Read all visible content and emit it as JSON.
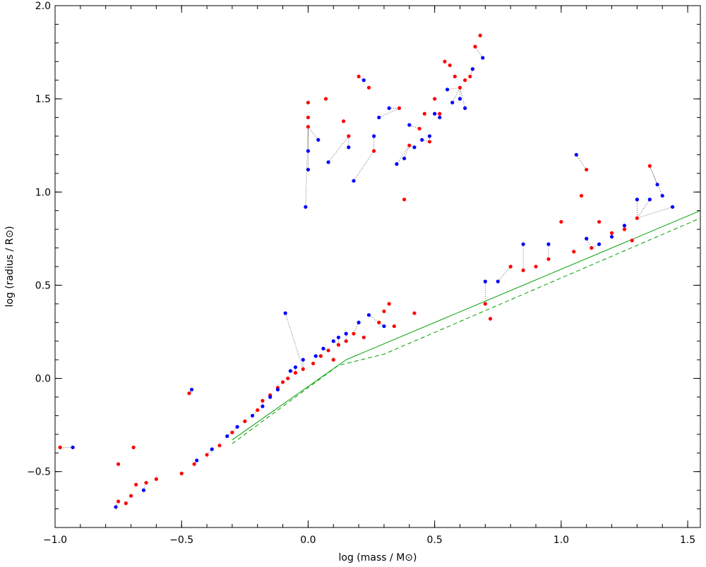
{
  "chart_data": {
    "type": "scatter",
    "title": "",
    "xlabel": "log (mass / M⊙)",
    "ylabel": "log (radius / R⊙)",
    "xlim": [
      -1.0,
      1.55
    ],
    "ylim": [
      -0.8,
      2.0
    ],
    "x_tick_labels": [
      "−1.0",
      "−0.5",
      "0.0",
      "0.5",
      "1.0",
      "1.5"
    ],
    "x_ticks": [
      -1.0,
      -0.5,
      0.0,
      0.5,
      1.0,
      1.5
    ],
    "y_tick_labels": [
      "−0.5",
      "0.0",
      "0.5",
      "1.0",
      "1.5",
      "2.0"
    ],
    "y_ticks": [
      -0.5,
      0.0,
      0.5,
      1.0,
      1.5,
      2.0
    ],
    "grid": false,
    "colors": {
      "series_a": "#ff0000",
      "series_b": "#0000ff",
      "line": "#00a000",
      "connector": "#404040"
    },
    "series": [
      {
        "color": "#ff0000",
        "points": [
          [
            -0.98,
            -0.37
          ],
          [
            -0.75,
            -0.46
          ],
          [
            -0.75,
            -0.66
          ],
          [
            -0.72,
            -0.67
          ],
          [
            -0.7,
            -0.63
          ],
          [
            -0.69,
            -0.37
          ],
          [
            -0.68,
            -0.57
          ],
          [
            -0.64,
            -0.56
          ],
          [
            -0.6,
            -0.54
          ],
          [
            -0.5,
            -0.51
          ],
          [
            -0.47,
            -0.08
          ],
          [
            -0.45,
            -0.46
          ],
          [
            -0.4,
            -0.41
          ],
          [
            -0.35,
            -0.36
          ],
          [
            -0.3,
            -0.29
          ],
          [
            -0.25,
            -0.23
          ],
          [
            -0.2,
            -0.17
          ],
          [
            -0.18,
            -0.12
          ],
          [
            -0.15,
            -0.09
          ],
          [
            -0.12,
            -0.05
          ],
          [
            -0.1,
            -0.02
          ],
          [
            -0.08,
            0.0
          ],
          [
            -0.05,
            0.03
          ],
          [
            -0.02,
            0.05
          ],
          [
            0.0,
            1.48
          ],
          [
            0.0,
            1.35
          ],
          [
            0.0,
            1.4
          ],
          [
            0.02,
            0.08
          ],
          [
            0.05,
            0.12
          ],
          [
            0.07,
            1.5
          ],
          [
            0.08,
            0.15
          ],
          [
            0.1,
            0.1
          ],
          [
            0.12,
            0.18
          ],
          [
            0.14,
            1.38
          ],
          [
            0.15,
            0.2
          ],
          [
            0.16,
            1.3
          ],
          [
            0.18,
            0.24
          ],
          [
            0.2,
            1.62
          ],
          [
            0.22,
            0.22
          ],
          [
            0.24,
            1.56
          ],
          [
            0.26,
            1.22
          ],
          [
            0.28,
            0.3
          ],
          [
            0.3,
            0.36
          ],
          [
            0.32,
            0.4
          ],
          [
            0.34,
            0.28
          ],
          [
            0.36,
            1.45
          ],
          [
            0.38,
            0.96
          ],
          [
            0.4,
            1.25
          ],
          [
            0.42,
            0.35
          ],
          [
            0.44,
            1.34
          ],
          [
            0.46,
            1.42
          ],
          [
            0.48,
            1.27
          ],
          [
            0.5,
            1.5
          ],
          [
            0.52,
            1.42
          ],
          [
            0.54,
            1.7
          ],
          [
            0.56,
            1.68
          ],
          [
            0.58,
            1.62
          ],
          [
            0.6,
            1.56
          ],
          [
            0.62,
            1.6
          ],
          [
            0.64,
            1.62
          ],
          [
            0.66,
            1.78
          ],
          [
            0.68,
            1.84
          ],
          [
            0.7,
            0.4
          ],
          [
            0.72,
            0.32
          ],
          [
            0.8,
            0.6
          ],
          [
            0.85,
            0.58
          ],
          [
            0.9,
            0.6
          ],
          [
            0.95,
            0.64
          ],
          [
            1.0,
            0.84
          ],
          [
            1.05,
            0.68
          ],
          [
            1.08,
            0.98
          ],
          [
            1.1,
            1.12
          ],
          [
            1.12,
            0.7
          ],
          [
            1.15,
            0.84
          ],
          [
            1.2,
            0.78
          ],
          [
            1.25,
            0.8
          ],
          [
            1.28,
            0.74
          ],
          [
            1.35,
            1.14
          ],
          [
            1.3,
            0.86
          ]
        ]
      },
      {
        "color": "#0000ff",
        "points": [
          [
            -0.93,
            -0.37
          ],
          [
            -0.76,
            -0.69
          ],
          [
            -0.65,
            -0.6
          ],
          [
            -0.46,
            -0.06
          ],
          [
            -0.44,
            -0.44
          ],
          [
            -0.38,
            -0.38
          ],
          [
            -0.32,
            -0.31
          ],
          [
            -0.28,
            -0.26
          ],
          [
            -0.22,
            -0.2
          ],
          [
            -0.18,
            -0.15
          ],
          [
            -0.15,
            -0.1
          ],
          [
            -0.12,
            -0.06
          ],
          [
            -0.09,
            0.35
          ],
          [
            -0.07,
            0.04
          ],
          [
            -0.05,
            0.06
          ],
          [
            -0.02,
            0.1
          ],
          [
            -0.01,
            0.92
          ],
          [
            0.0,
            1.22
          ],
          [
            0.0,
            1.12
          ],
          [
            0.03,
            0.12
          ],
          [
            0.04,
            1.28
          ],
          [
            0.06,
            0.16
          ],
          [
            0.08,
            1.16
          ],
          [
            0.1,
            0.2
          ],
          [
            0.12,
            0.22
          ],
          [
            0.15,
            0.24
          ],
          [
            0.16,
            1.24
          ],
          [
            0.18,
            1.06
          ],
          [
            0.2,
            0.3
          ],
          [
            0.22,
            1.6
          ],
          [
            0.24,
            0.34
          ],
          [
            0.26,
            1.3
          ],
          [
            0.28,
            1.4
          ],
          [
            0.3,
            0.28
          ],
          [
            0.32,
            1.45
          ],
          [
            0.35,
            1.15
          ],
          [
            0.38,
            1.18
          ],
          [
            0.4,
            1.36
          ],
          [
            0.42,
            1.24
          ],
          [
            0.45,
            1.28
          ],
          [
            0.48,
            1.3
          ],
          [
            0.5,
            1.42
          ],
          [
            0.52,
            1.4
          ],
          [
            0.55,
            1.55
          ],
          [
            0.57,
            1.48
          ],
          [
            0.6,
            1.5
          ],
          [
            0.62,
            1.45
          ],
          [
            0.65,
            1.66
          ],
          [
            0.69,
            1.72
          ],
          [
            0.7,
            0.52
          ],
          [
            0.75,
            0.52
          ],
          [
            0.85,
            0.72
          ],
          [
            0.95,
            0.72
          ],
          [
            1.06,
            1.2
          ],
          [
            1.1,
            0.75
          ],
          [
            1.15,
            0.72
          ],
          [
            1.2,
            0.76
          ],
          [
            1.25,
            0.82
          ],
          [
            1.3,
            0.96
          ],
          [
            1.35,
            0.96
          ],
          [
            1.38,
            1.04
          ],
          [
            1.4,
            0.98
          ],
          [
            1.44,
            0.92
          ]
        ]
      }
    ],
    "main_sequence_solid": [
      [
        -0.3,
        -0.33
      ],
      [
        0.15,
        0.1
      ],
      [
        1.55,
        0.9
      ]
    ],
    "main_sequence_dashed": [
      [
        -0.3,
        -0.35
      ],
      [
        0.12,
        0.07
      ],
      [
        0.3,
        0.13
      ],
      [
        1.55,
        0.86
      ]
    ]
  }
}
